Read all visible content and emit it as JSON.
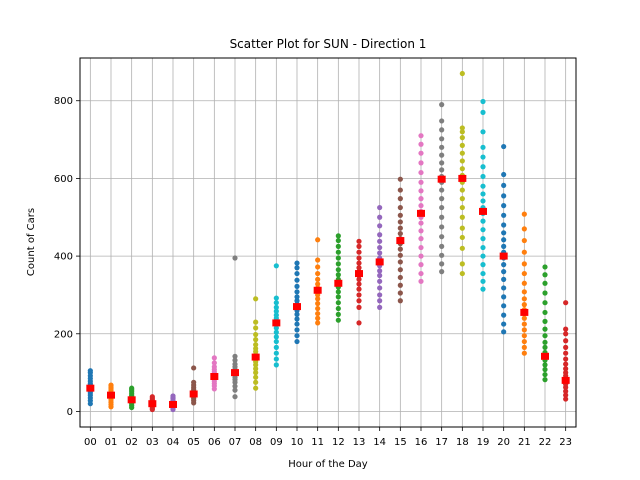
{
  "chart_data": {
    "type": "scatter",
    "title": "Scatter Plot for SUN - Direction 1",
    "xlabel": "Hour of the Day",
    "ylabel": "Count of Cars",
    "categories": [
      "00",
      "01",
      "02",
      "03",
      "04",
      "05",
      "06",
      "07",
      "08",
      "09",
      "10",
      "11",
      "12",
      "13",
      "14",
      "15",
      "16",
      "17",
      "18",
      "19",
      "20",
      "21",
      "22",
      "23"
    ],
    "yticks": [
      0,
      200,
      400,
      600,
      800
    ],
    "ylim": [
      -40,
      910
    ],
    "grid": true,
    "mean_marker_color": "#ff0000",
    "colors": [
      "#1f77b4",
      "#ff7f0e",
      "#2ca02c",
      "#d62728",
      "#9467bd",
      "#8c564b",
      "#e377c2",
      "#7f7f7f",
      "#bcbd22",
      "#17becf"
    ],
    "series": [
      {
        "hour": "00",
        "min": 20,
        "max": 105,
        "mean": 60,
        "values": [
          20,
          28,
          35,
          42,
          48,
          52,
          55,
          58,
          60,
          62,
          65,
          68,
          72,
          78,
          85,
          92,
          100,
          105
        ]
      },
      {
        "hour": "01",
        "min": 12,
        "max": 68,
        "mean": 42,
        "values": [
          12,
          18,
          24,
          30,
          35,
          38,
          40,
          42,
          44,
          47,
          50,
          54,
          58,
          62,
          66,
          68
        ]
      },
      {
        "hour": "02",
        "min": 10,
        "max": 60,
        "mean": 30,
        "values": [
          10,
          15,
          20,
          24,
          27,
          30,
          32,
          35,
          38,
          42,
          47,
          52,
          56,
          60
        ]
      },
      {
        "hour": "03",
        "min": 5,
        "max": 38,
        "mean": 20,
        "values": [
          5,
          8,
          12,
          15,
          18,
          20,
          22,
          24,
          27,
          30,
          34,
          38
        ]
      },
      {
        "hour": "04",
        "min": 5,
        "max": 40,
        "mean": 18,
        "values": [
          5,
          8,
          11,
          14,
          17,
          19,
          21,
          24,
          28,
          33,
          37,
          40
        ]
      },
      {
        "hour": "05",
        "min": 22,
        "max": 112,
        "mean": 45,
        "values": [
          22,
          28,
          33,
          38,
          42,
          45,
          48,
          52,
          57,
          62,
          68,
          75,
          112
        ]
      },
      {
        "hour": "06",
        "min": 58,
        "max": 138,
        "mean": 90,
        "values": [
          58,
          66,
          72,
          78,
          84,
          88,
          90,
          93,
          97,
          102,
          108,
          115,
          125,
          138
        ]
      },
      {
        "hour": "07",
        "min": 38,
        "max": 395,
        "mean": 100,
        "values": [
          38,
          55,
          65,
          75,
          82,
          88,
          94,
          98,
          102,
          108,
          115,
          122,
          132,
          142,
          395
        ]
      },
      {
        "hour": "08",
        "min": 60,
        "max": 290,
        "mean": 140,
        "values": [
          60,
          75,
          88,
          100,
          110,
          120,
          128,
          135,
          140,
          146,
          154,
          162,
          172,
          185,
          198,
          215,
          230,
          290
        ]
      },
      {
        "hour": "09",
        "min": 120,
        "max": 375,
        "mean": 228,
        "values": [
          120,
          135,
          150,
          165,
          180,
          192,
          204,
          215,
          225,
          232,
          240,
          248,
          258,
          268,
          280,
          292,
          375
        ]
      },
      {
        "hour": "10",
        "min": 180,
        "max": 382,
        "mean": 270,
        "values": [
          180,
          195,
          210,
          225,
          238,
          250,
          260,
          268,
          276,
          285,
          295,
          308,
          322,
          338,
          355,
          370,
          382
        ]
      },
      {
        "hour": "11",
        "min": 228,
        "max": 442,
        "mean": 312,
        "values": [
          228,
          240,
          252,
          265,
          278,
          290,
          300,
          310,
          318,
          328,
          340,
          355,
          372,
          390,
          442
        ]
      },
      {
        "hour": "12",
        "min": 235,
        "max": 452,
        "mean": 330,
        "values": [
          235,
          250,
          265,
          280,
          295,
          308,
          320,
          330,
          340,
          352,
          365,
          380,
          395,
          410,
          425,
          440,
          452
        ]
      },
      {
        "hour": "13",
        "min": 228,
        "max": 438,
        "mean": 355,
        "values": [
          228,
          268,
          285,
          300,
          315,
          328,
          340,
          350,
          360,
          370,
          382,
          395,
          410,
          425,
          438
        ]
      },
      {
        "hour": "14",
        "min": 268,
        "max": 525,
        "mean": 385,
        "values": [
          268,
          285,
          300,
          318,
          335,
          350,
          362,
          375,
          385,
          395,
          408,
          422,
          438,
          455,
          478,
          500,
          525
        ]
      },
      {
        "hour": "15",
        "min": 285,
        "max": 598,
        "mean": 440,
        "values": [
          285,
          305,
          325,
          345,
          365,
          385,
          402,
          418,
          432,
          445,
          458,
          472,
          488,
          505,
          525,
          548,
          570,
          598
        ]
      },
      {
        "hour": "16",
        "min": 335,
        "max": 710,
        "mean": 510,
        "values": [
          335,
          355,
          378,
          400,
          422,
          445,
          465,
          485,
          500,
          515,
          530,
          548,
          568,
          590,
          615,
          640,
          665,
          688,
          710
        ]
      },
      {
        "hour": "17",
        "min": 360,
        "max": 790,
        "mean": 598,
        "values": [
          360,
          380,
          402,
          425,
          450,
          475,
          500,
          525,
          548,
          570,
          590,
          605,
          622,
          640,
          660,
          680,
          702,
          725,
          748,
          790
        ]
      },
      {
        "hour": "18",
        "min": 355,
        "max": 870,
        "mean": 600,
        "values": [
          355,
          380,
          420,
          448,
          472,
          500,
          525,
          548,
          570,
          590,
          608,
          625,
          645,
          665,
          685,
          705,
          720,
          730,
          870
        ]
      },
      {
        "hour": "19",
        "min": 315,
        "max": 798,
        "mean": 515,
        "values": [
          315,
          335,
          355,
          378,
          400,
          422,
          445,
          468,
          490,
          510,
          525,
          542,
          560,
          580,
          605,
          630,
          655,
          680,
          720,
          770,
          798
        ]
      },
      {
        "hour": "20",
        "min": 205,
        "max": 682,
        "mean": 400,
        "values": [
          205,
          225,
          248,
          272,
          295,
          318,
          340,
          360,
          378,
          395,
          410,
          425,
          442,
          460,
          480,
          505,
          530,
          555,
          582,
          610,
          682
        ]
      },
      {
        "hour": "21",
        "min": 150,
        "max": 508,
        "mean": 255,
        "values": [
          150,
          165,
          180,
          195,
          210,
          225,
          240,
          252,
          262,
          275,
          290,
          308,
          330,
          355,
          380,
          410,
          440,
          470,
          508
        ]
      },
      {
        "hour": "22",
        "min": 82,
        "max": 372,
        "mean": 142,
        "values": [
          82,
          95,
          108,
          120,
          132,
          142,
          152,
          165,
          178,
          195,
          212,
          232,
          255,
          280,
          305,
          330,
          352,
          372
        ]
      },
      {
        "hour": "23",
        "min": 32,
        "max": 280,
        "mean": 80,
        "values": [
          32,
          42,
          52,
          62,
          70,
          78,
          85,
          92,
          100,
          110,
          122,
          135,
          150,
          165,
          182,
          200,
          212,
          280
        ]
      }
    ]
  }
}
